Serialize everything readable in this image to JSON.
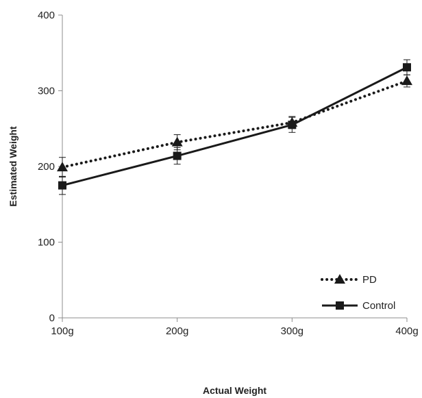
{
  "chart_data": {
    "type": "line",
    "title": "",
    "xlabel": "Actual Weight",
    "ylabel": "Estimated Weight",
    "categories": [
      "100g",
      "200g",
      "300g",
      "400g"
    ],
    "ylim": [
      0,
      400
    ],
    "yticks": [
      0,
      100,
      200,
      300,
      400
    ],
    "grid": false,
    "legend_position": "bottom-right",
    "series": [
      {
        "name": "PD",
        "values": [
          199,
          232,
          258,
          313
        ],
        "errors": [
          13,
          10,
          8,
          8
        ],
        "marker": "triangle",
        "line_style": "dotted",
        "color": "#1a1a1a"
      },
      {
        "name": "Control",
        "values": [
          175,
          214,
          255,
          331
        ],
        "errors": [
          12,
          11,
          10,
          10
        ],
        "marker": "square",
        "line_style": "solid",
        "color": "#1a1a1a"
      }
    ]
  }
}
